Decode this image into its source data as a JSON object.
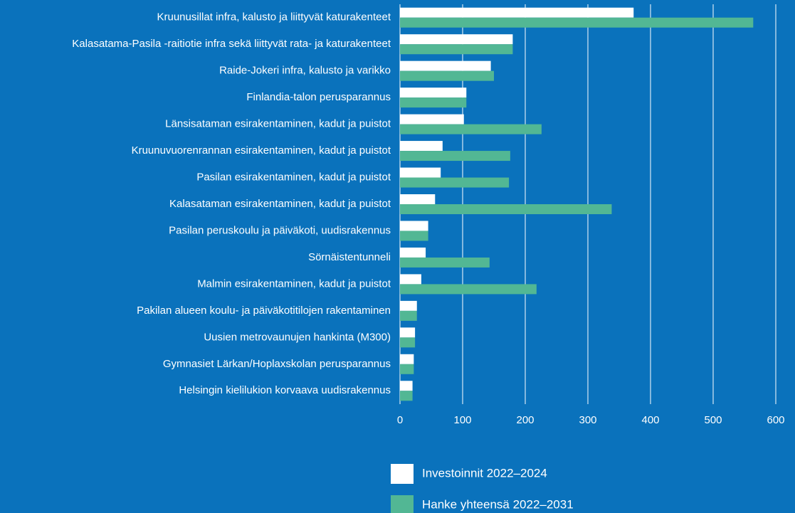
{
  "chart_data": {
    "type": "hbar",
    "categories": [
      "Kruunusillat infra, kalusto ja liittyvät katurakenteet",
      "Kalasatama-Pasila -raitiotie infra sekä liittyvät rata- ja katurakenteet",
      "Raide-Jokeri infra, kalusto ja varikko",
      "Finlandia-talon perusparannus",
      "Länsisataman esirakentaminen, kadut ja puistot",
      "Kruunuvuorenrannan esirakentaminen, kadut ja puistot",
      "Pasilan esirakentaminen, kadut ja puistot",
      "Kalasataman esirakentaminen, kadut ja puistot",
      "Pasilan peruskoulu ja päiväkoti, uudisrakennus",
      "Sörnäistentunneli",
      "Malmin esirakentaminen, kadut ja puistot",
      "Pakilan alueen koulu- ja päiväkotitilojen rakentaminen",
      "Uusien metrovaunujen hankinta (M300)",
      "Gymnasiet Lärkan/Hoplaxskolan perusparannus",
      "Helsingin kielilukion korvaava uudisrakennus"
    ],
    "series": [
      {
        "name": "Investoinnit 2022–2024",
        "color": "#ffffff",
        "values": [
          373,
          180,
          145,
          106,
          102,
          68,
          65,
          56,
          45,
          41,
          34,
          27,
          24,
          22,
          20
        ]
      },
      {
        "name": "Hanke yhteensä 2022–2031",
        "color": "#52b794",
        "values": [
          564,
          180,
          150,
          106,
          226,
          176,
          174,
          338,
          45,
          143,
          218,
          27,
          24,
          22,
          20
        ]
      }
    ],
    "xlim": [
      0,
      600
    ],
    "xticks": [
      0,
      100,
      200,
      300,
      400,
      500,
      600
    ],
    "grid": true,
    "legend": "bottom"
  }
}
